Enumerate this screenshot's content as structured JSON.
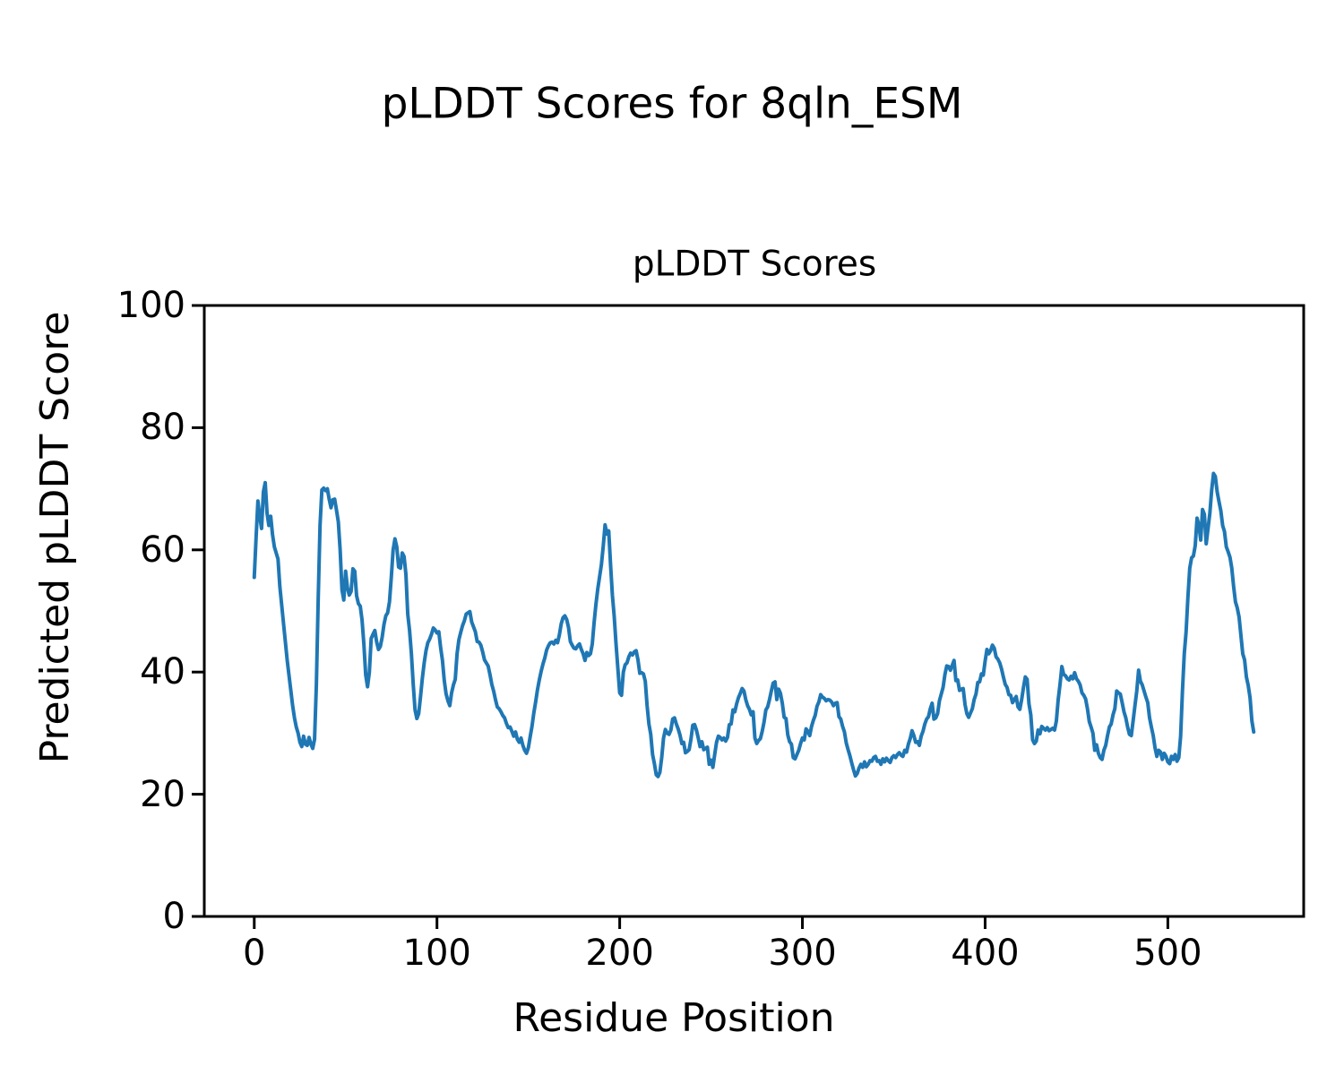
{
  "figure": {
    "suptitle": "pLDDT Scores for 8qln_ESM",
    "background_color": "#ffffff",
    "text_color": "#000000"
  },
  "chart_data": {
    "type": "line",
    "title": "pLDDT Scores",
    "xlabel": "Residue Position",
    "ylabel": "Predicted pLDDT Score",
    "xlim": [
      -27.35,
      574.35
    ],
    "ylim": [
      0,
      100
    ],
    "xticks": [
      0,
      100,
      200,
      300,
      400,
      500
    ],
    "yticks": [
      0,
      20,
      40,
      60,
      80,
      100
    ],
    "grid": false,
    "legend": null,
    "line_color": "#1f77b4",
    "line_width": 4,
    "axis_color": "#000000",
    "series": [
      {
        "name": "pLDDT",
        "x_start": 0,
        "x_step": 1,
        "y": [
          55.5,
          62,
          68,
          65.5,
          63.5,
          69.5,
          71,
          66,
          64,
          65.5,
          62.5,
          60.5,
          59.5,
          58.5,
          54,
          51,
          48,
          45,
          42,
          39.5,
          37,
          34.5,
          32.5,
          31,
          30,
          28.5,
          27.8,
          29.5,
          28.2,
          28,
          29.3,
          28.2,
          27.5,
          29,
          38,
          52,
          64,
          69.8,
          70.1,
          69.7,
          70,
          68.3,
          66.9,
          68.2,
          68.3,
          66.5,
          64.6,
          60,
          53.5,
          51.8,
          56.5,
          53.8,
          52.6,
          53.2,
          56.9,
          56.5,
          52.5,
          51.2,
          50.8,
          48.5,
          44.5,
          39.5,
          37.6,
          40,
          45.5,
          46.2,
          46.8,
          44.9,
          43.7,
          44.2,
          45.7,
          47.8,
          49.2,
          49.7,
          51.5,
          55.5,
          60,
          61.8,
          60.5,
          57.2,
          57,
          59.5,
          58.9,
          56,
          49.5,
          46.8,
          43,
          38,
          33.8,
          32.4,
          33.2,
          36,
          39,
          41.5,
          43.5,
          44.8,
          45.4,
          46.2,
          47.2,
          46.9,
          46.4,
          46.6,
          44,
          41.9,
          38.6,
          36.4,
          35.3,
          34.5,
          36.6,
          37.9,
          38.8,
          43,
          45.3,
          46.5,
          47.6,
          48.4,
          49.5,
          49.7,
          49.9,
          48.2,
          47.4,
          46.6,
          45,
          44.9,
          44.4,
          43.3,
          42,
          41.5,
          41,
          39.6,
          38,
          36.9,
          35.5,
          34.3,
          34,
          33.5,
          32.9,
          32.5,
          31.6,
          30.9,
          31,
          30.3,
          29.5,
          30.2,
          29,
          28.5,
          29.2,
          28,
          27.2,
          26.7,
          27.6,
          29.4,
          31.1,
          33.3,
          35.1,
          37.1,
          38.7,
          40.1,
          41.3,
          42.3,
          43.6,
          44.3,
          44.8,
          44.9,
          44.6,
          45.2,
          44.8,
          46.1,
          47.9,
          48.9,
          49.2,
          48.6,
          47.3,
          45,
          44.4,
          43.9,
          43.8,
          44.3,
          44.6,
          43.7,
          43,
          41.9,
          43.2,
          42.7,
          43,
          44.6,
          48.1,
          51.1,
          53.6,
          55.6,
          57.6,
          60.6,
          64.1,
          62.6,
          63.1,
          57.6,
          52.6,
          49.1,
          44.6,
          40.6,
          36.6,
          36.2,
          40,
          41.2,
          41.5,
          42.5,
          43.1,
          42.8,
          43.3,
          43.5,
          42,
          39.8,
          39.9,
          39.7,
          38.5,
          34.5,
          31.5,
          29.8,
          26.5,
          25,
          23.2,
          22.9,
          23.6,
          26,
          29.2,
          30.6,
          30,
          29.8,
          30.5,
          32.3,
          32.5,
          31.5,
          30.7,
          29.7,
          28.3,
          28.5,
          26.8,
          27,
          27.3,
          29,
          31.3,
          31.4,
          30.5,
          29.2,
          27.8,
          28.6,
          27.3,
          27.5,
          27.7,
          24.9,
          25.6,
          24.4,
          26.5,
          28.5,
          29.5,
          29.3,
          28.9,
          29.2,
          28.7,
          29.3,
          31.4,
          31.5,
          33.8,
          33.5,
          34.8,
          35.8,
          36.5,
          37.3,
          36.9,
          35.5,
          34.5,
          33.9,
          33,
          33.5,
          29.2,
          28.3,
          28.8,
          29.1,
          30.3,
          31.8,
          33.8,
          34.3,
          35.5,
          36.9,
          38.2,
          38.4,
          35.5,
          37.2,
          36.5,
          34.9,
          32.6,
          32.4,
          29.7,
          28.6,
          28.2,
          26,
          25.8,
          26.5,
          27.2,
          28.3,
          29.2,
          28.9,
          30.7,
          30.3,
          29.6,
          31.1,
          32.1,
          32.9,
          34.4,
          35.1,
          36.3,
          35.9,
          35.7,
          35.3,
          35.5,
          35.4,
          35.1,
          34.5,
          34.9,
          35,
          32.7,
          32.3,
          31.1,
          30.2,
          28.4,
          27.3,
          26.3,
          25.1,
          24,
          23,
          23.4,
          24.3,
          24.9,
          24.4,
          25.3,
          24.5,
          24.9,
          25.5,
          25.4,
          26,
          26.2,
          25.4,
          25.5,
          24.9,
          25.8,
          25.3,
          25.9,
          25.5,
          25.2,
          26,
          26.3,
          26,
          26.5,
          26.8,
          26.4,
          26.2,
          27.2,
          26.9,
          28.2,
          29.1,
          30.4,
          29.6,
          28.5,
          28.6,
          28,
          29.5,
          30.3,
          31.5,
          32.3,
          32.7,
          34,
          34.9,
          32.3,
          32.5,
          33.2,
          35.3,
          36.4,
          37.5,
          39.6,
          41,
          40.9,
          40.3,
          41.1,
          41.9,
          38.6,
          38.7,
          37,
          37.2,
          37.3,
          34.7,
          33.2,
          32.6,
          33.3,
          34,
          35.5,
          36.4,
          38.3,
          38.4,
          39.7,
          39.5,
          41.8,
          43.7,
          43,
          43.5,
          44.4,
          43.9,
          42.5,
          42.1,
          41.5,
          40.5,
          39.2,
          38,
          37.5,
          36.3,
          36.2,
          35,
          35.5,
          36,
          34.3,
          33.9,
          35.5,
          37.5,
          39.2,
          38.8,
          34.8,
          33,
          28.9,
          28.3,
          28.7,
          30.5,
          29.9,
          31.1,
          30.8,
          30.5,
          30.9,
          30.4,
          30.6,
          30.8,
          30.5,
          32,
          35.5,
          38,
          40.9,
          39.6,
          39.4,
          38.9,
          38.7,
          39.3,
          38.9,
          39.9,
          38.9,
          38.5,
          37.9,
          36.6,
          36.2,
          35.6,
          34,
          31.9,
          31,
          30,
          27.2,
          28.1,
          26.7,
          26,
          25.7,
          27.2,
          28,
          29.6,
          31,
          31.5,
          33,
          34,
          36.9,
          36.6,
          36.4,
          35,
          33.5,
          32.5,
          31,
          29.8,
          29.6,
          32,
          34.5,
          36.9,
          40.3,
          38.5,
          37.9,
          36.9,
          35.9,
          35,
          32.5,
          31,
          29.6,
          27.6,
          26.2,
          27.2,
          26.9,
          25.7,
          26.7,
          26.2,
          25.3,
          25,
          26.2,
          25.7,
          26.5,
          25.4,
          26,
          29.5,
          36.9,
          43,
          46.6,
          52.3,
          57,
          58.7,
          59,
          60.7,
          65.2,
          64,
          61.6,
          66.6,
          65.8,
          61,
          63.5,
          66,
          69.8,
          72.5,
          72,
          69.5,
          67.9,
          66.4,
          64,
          63,
          60.5,
          59.7,
          58.8,
          57,
          54,
          51.5,
          50.5,
          49,
          46,
          43,
          42,
          39.2,
          37.8,
          35.8,
          32,
          30.2
        ]
      }
    ]
  },
  "layout_labels": {
    "plot_region": "axes-frame"
  }
}
